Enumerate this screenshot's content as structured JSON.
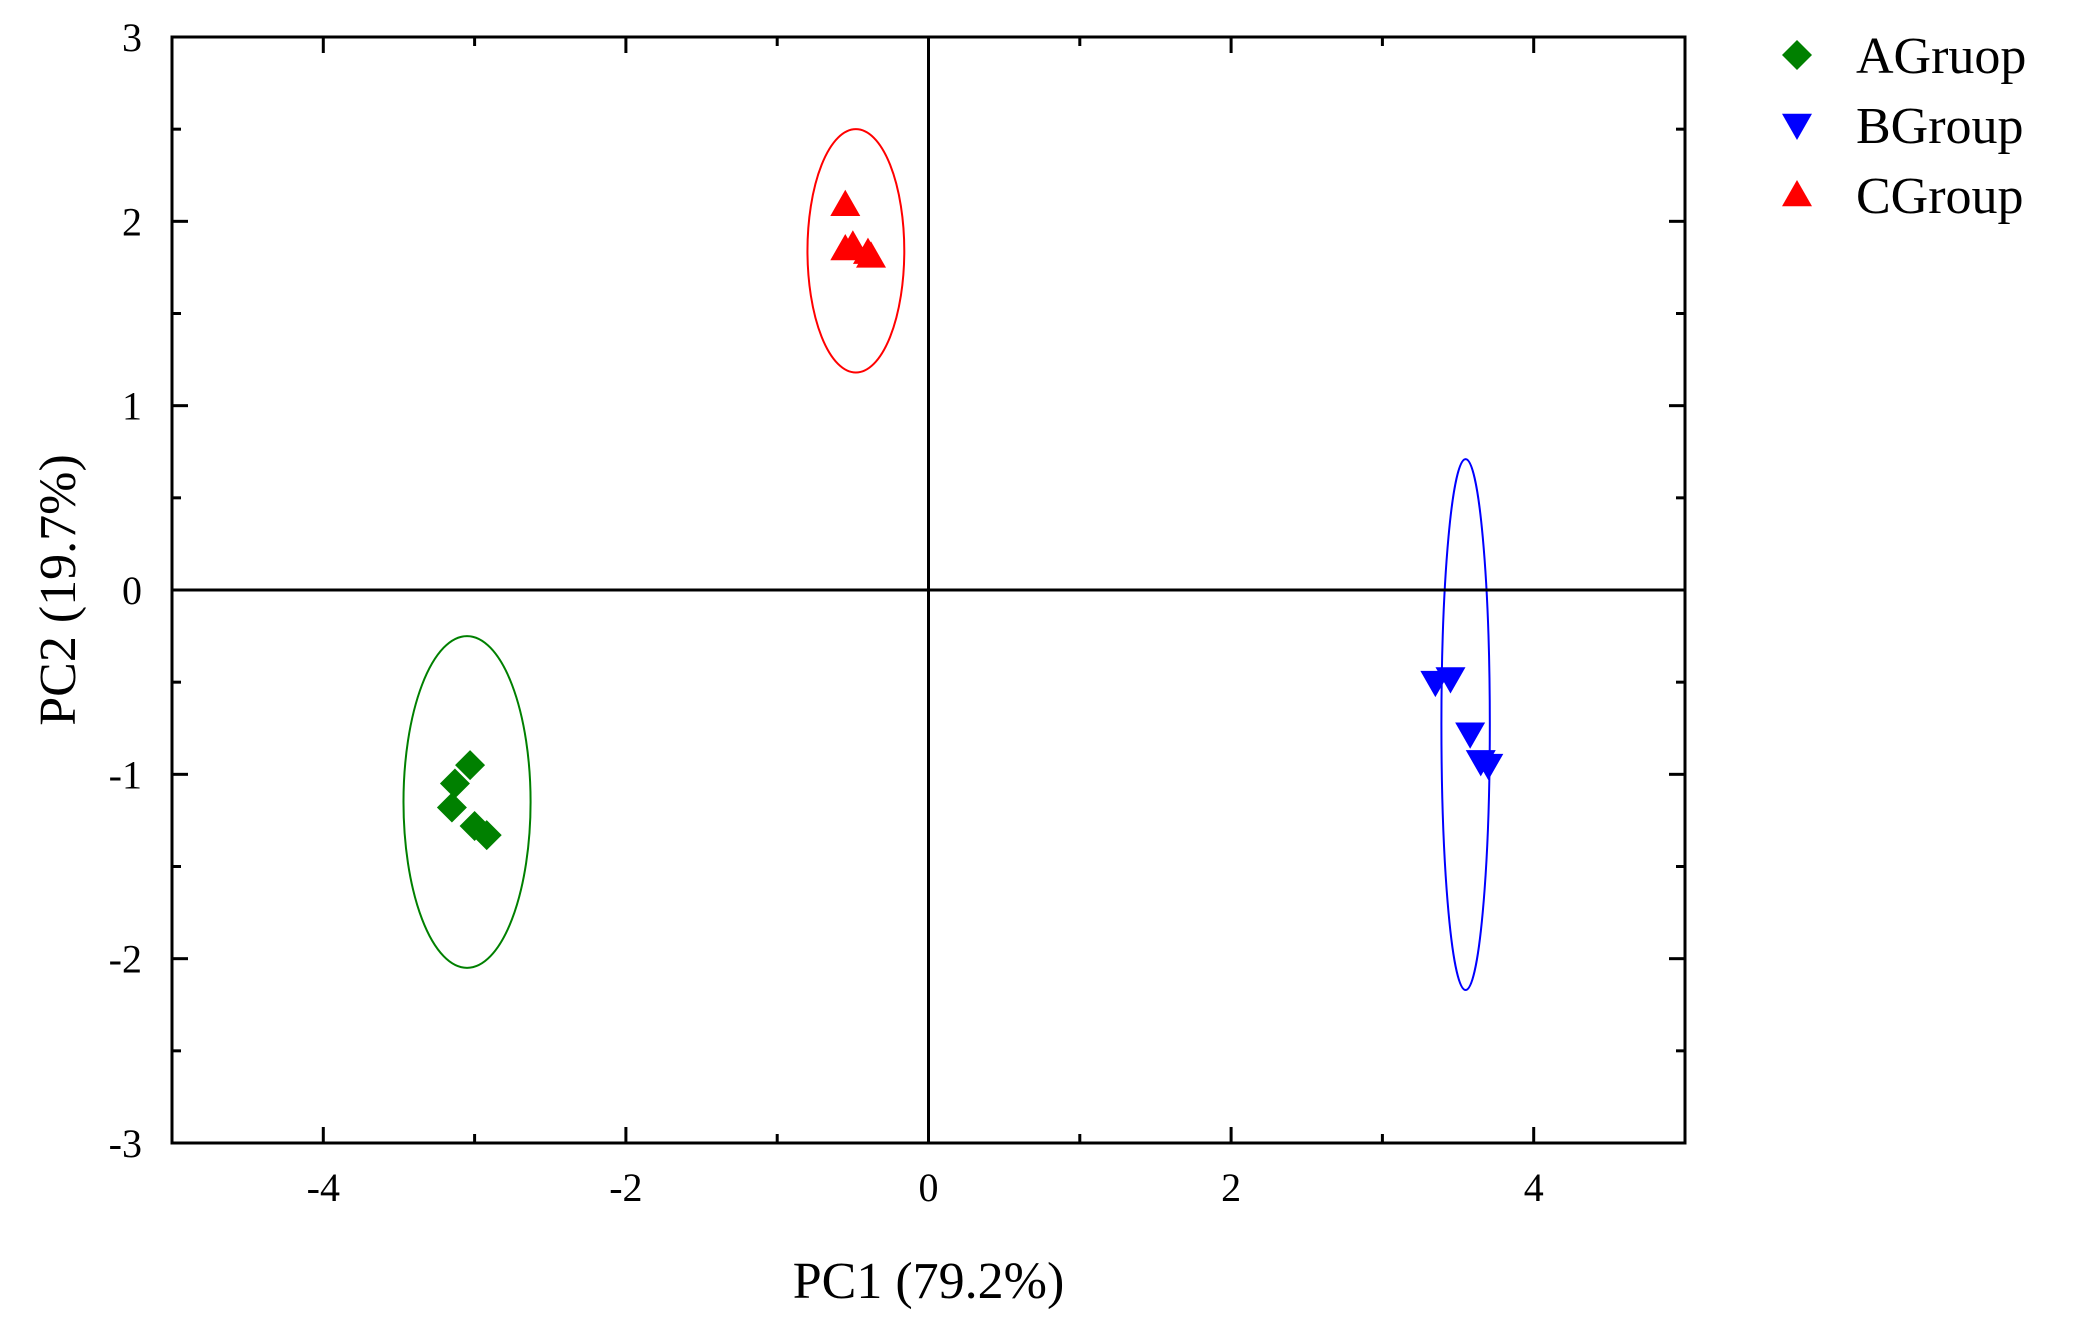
{
  "chart_data": {
    "type": "scatter",
    "title": "",
    "xlabel": "PC1 (79.2%)",
    "ylabel": "PC2 (19.7%)",
    "xlim": [
      -5,
      5
    ],
    "ylim": [
      -3,
      3
    ],
    "xticks": [
      -4,
      -2,
      0,
      2,
      4
    ],
    "yticks": [
      -3,
      -2,
      -1,
      0,
      1,
      2,
      3
    ],
    "xtick_labels": [
      "-4",
      "-2",
      "0",
      "2",
      "4"
    ],
    "ytick_labels": [
      "-3",
      "-2",
      "-1",
      "0",
      "1",
      "2",
      "3"
    ],
    "grid": false,
    "zero_lines": true,
    "legend_position": "top-right, outside plot",
    "series": [
      {
        "name": "AGruop",
        "color": "#008000",
        "marker": "diamond",
        "points": [
          {
            "x": -3.03,
            "y": -0.95
          },
          {
            "x": -3.13,
            "y": -1.05
          },
          {
            "x": -3.15,
            "y": -1.18
          },
          {
            "x": -3.0,
            "y": -1.28
          },
          {
            "x": -2.92,
            "y": -1.33
          }
        ],
        "ellipse": {
          "cx": -3.05,
          "cy": -1.15,
          "rx": 0.42,
          "ry": 0.9,
          "angle_deg": 80
        }
      },
      {
        "name": "BGroup",
        "color": "#0000ff",
        "marker": "triangle-down",
        "points": [
          {
            "x": 3.35,
            "y": -0.5
          },
          {
            "x": 3.45,
            "y": -0.48
          },
          {
            "x": 3.58,
            "y": -0.78
          },
          {
            "x": 3.65,
            "y": -0.93
          },
          {
            "x": 3.7,
            "y": -0.95
          }
        ],
        "ellipse": {
          "cx": 3.55,
          "cy": -0.73,
          "rx": 0.16,
          "ry": 1.44,
          "angle_deg": 61
        }
      },
      {
        "name": "CGroup",
        "color": "#ff0000",
        "marker": "triangle-up",
        "points": [
          {
            "x": -0.55,
            "y": 2.09
          },
          {
            "x": -0.55,
            "y": 1.85
          },
          {
            "x": -0.5,
            "y": 1.87
          },
          {
            "x": -0.4,
            "y": 1.83
          },
          {
            "x": -0.38,
            "y": 1.81
          }
        ],
        "ellipse": {
          "cx": -0.48,
          "cy": 1.84,
          "rx": 0.32,
          "ry": 0.66,
          "angle_deg": 70
        }
      }
    ]
  }
}
